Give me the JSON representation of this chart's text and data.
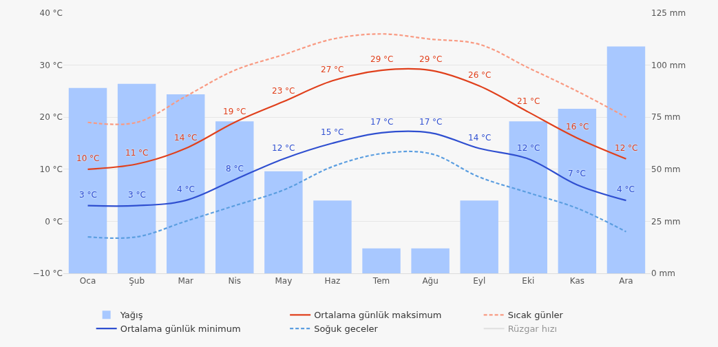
{
  "chart_data": {
    "type": "line",
    "categories": [
      "Oca",
      "Şub",
      "Mar",
      "Nis",
      "May",
      "Haz",
      "Tem",
      "Ağu",
      "Eyl",
      "Eki",
      "Kas",
      "Ara"
    ],
    "series": [
      {
        "name": "Yağış",
        "type": "bar",
        "axis": "y2",
        "color": "#a8c8ff",
        "values": [
          89,
          91,
          86,
          73,
          49,
          35,
          12,
          12,
          35,
          73,
          79,
          109
        ]
      },
      {
        "name": "Ortalama günlük maksimum",
        "color": "#e0401c",
        "values": [
          10,
          11,
          14,
          19,
          23,
          27,
          29,
          29,
          26,
          21,
          16,
          12
        ],
        "value_labels": [
          "10 °C",
          "11 °C",
          "14 °C",
          "19 °C",
          "23 °C",
          "27 °C",
          "29 °C",
          "29 °C",
          "26 °C",
          "21 °C",
          "16 °C",
          "12 °C"
        ]
      },
      {
        "name": "Sıcak günler",
        "color": "#f99a82",
        "line_style": "dashed",
        "values": [
          19,
          19,
          24,
          29,
          32,
          35,
          36,
          35,
          34,
          29.5,
          25,
          20
        ]
      },
      {
        "name": "Ortalama günlük minimum",
        "color": "#2f4fd0",
        "values": [
          3,
          3,
          4,
          8,
          12,
          15,
          17,
          17,
          14,
          12,
          7,
          4
        ],
        "value_labels": [
          "3 °C",
          "3 °C",
          "4 °C",
          "8 °C",
          "12 °C",
          "15 °C",
          "17 °C",
          "17 °C",
          "14 °C",
          "12 °C",
          "7 °C",
          "4 °C"
        ]
      },
      {
        "name": "Soğuk geceler",
        "color": "#5b9ee0",
        "line_style": "dashed",
        "values": [
          -3,
          -3,
          0,
          3,
          6,
          10.5,
          13,
          13,
          8.5,
          5.5,
          2.5,
          -2
        ]
      },
      {
        "name": "Rüzgar hızı",
        "color": "#cccccc",
        "values": [
          null,
          null,
          null,
          null,
          null,
          null,
          null,
          null,
          null,
          null,
          null,
          null
        ]
      }
    ],
    "ylim": [
      -10,
      40
    ],
    "yticks": [
      {
        "value": -10,
        "label": "−10 °C"
      },
      {
        "value": 0,
        "label": "0 °C"
      },
      {
        "value": 10,
        "label": "10 °C"
      },
      {
        "value": 20,
        "label": "20 °C"
      },
      {
        "value": 30,
        "label": "30 °C"
      },
      {
        "value": 40,
        "label": "40 °C"
      }
    ],
    "y2lim": [
      0,
      125
    ],
    "y2ticks": [
      {
        "value": 0,
        "label": "0 mm"
      },
      {
        "value": 25,
        "label": "25 mm"
      },
      {
        "value": 50,
        "label": "50 mm"
      },
      {
        "value": 75,
        "label": "75 mm"
      },
      {
        "value": 100,
        "label": "100 mm"
      },
      {
        "value": 125,
        "label": "125 mm"
      }
    ],
    "grid": "y",
    "legend": "bottom",
    "marker": "none"
  }
}
